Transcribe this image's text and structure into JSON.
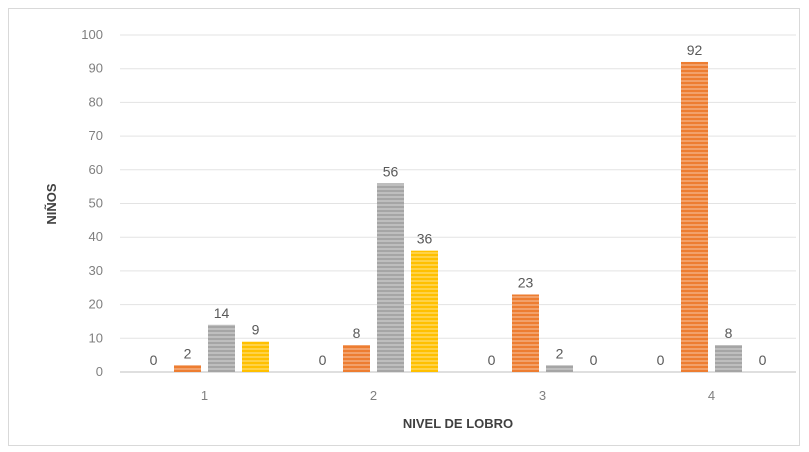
{
  "chart_data": {
    "type": "bar",
    "title": "",
    "xlabel": "NIVEL DE LOBRO",
    "ylabel": "NIÑOS",
    "ylim": [
      0,
      100
    ],
    "yticks": [
      0,
      10,
      20,
      30,
      40,
      50,
      60,
      70,
      80,
      90,
      100
    ],
    "grid": true,
    "legend": "none",
    "categories": [
      "1",
      "2",
      "3",
      "4"
    ],
    "series": [
      {
        "values": [
          0,
          0,
          0,
          0
        ],
        "color": "#5b9bd5"
      },
      {
        "values": [
          2,
          8,
          23,
          92
        ],
        "color": "#ed7d31"
      },
      {
        "values": [
          14,
          56,
          2,
          8
        ],
        "color": "#a5a5a5"
      },
      {
        "values": [
          9,
          36,
          0,
          0
        ],
        "color": "#ffc000"
      }
    ]
  }
}
